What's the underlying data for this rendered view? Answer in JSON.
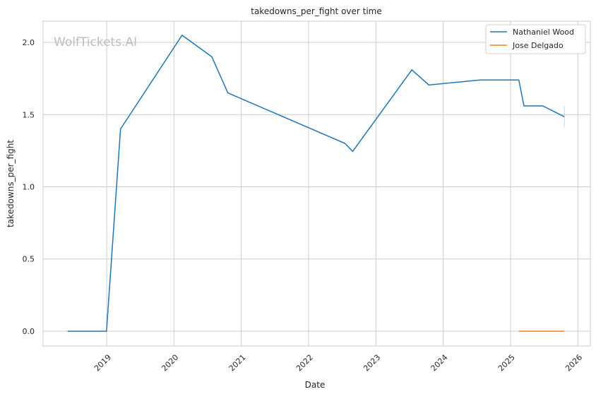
{
  "chart_data": {
    "type": "line",
    "title": "takedowns_per_fight over time",
    "xlabel": "Date",
    "ylabel": "takedowns_per_fight",
    "watermark": "WolfTickets.AI",
    "xlim": [
      "2018-01-21",
      "2026-03-10"
    ],
    "ylim": [
      -0.103,
      2.147
    ],
    "xticks": [
      "2019",
      "2020",
      "2021",
      "2022",
      "2023",
      "2024",
      "2025",
      "2026"
    ],
    "yticks": [
      "0.0",
      "0.5",
      "1.0",
      "1.5",
      "2.0"
    ],
    "grid": true,
    "legend": "top-right",
    "series": [
      {
        "name": "Nathaniel Wood",
        "color": "#1f77b4",
        "points": [
          [
            "2018-06-03",
            0
          ],
          [
            "2018-12-31",
            0
          ],
          [
            "2019-03-17",
            1.4
          ],
          [
            "2020-02-14",
            2.05
          ],
          [
            "2020-07-25",
            1.9
          ],
          [
            "2020-10-20",
            1.65
          ],
          [
            "2022-07-18",
            1.3
          ],
          [
            "2022-08-28",
            1.245
          ],
          [
            "2023-07-15",
            1.81
          ],
          [
            "2023-10-15",
            1.705
          ],
          [
            "2024-07-20",
            1.74
          ],
          [
            "2025-02-15",
            1.74
          ],
          [
            "2025-03-15",
            1.56
          ],
          [
            "2025-06-25",
            1.56
          ],
          [
            "2025-10-20",
            1.485
          ]
        ],
        "error_bar": {
          "x": "2025-10-20",
          "low": 1.41,
          "high": 1.56
        }
      },
      {
        "name": "Jose Delgado",
        "color": "#ff7f0e",
        "points": [
          [
            "2025-02-15",
            0
          ],
          [
            "2025-10-20",
            0
          ]
        ]
      }
    ]
  }
}
